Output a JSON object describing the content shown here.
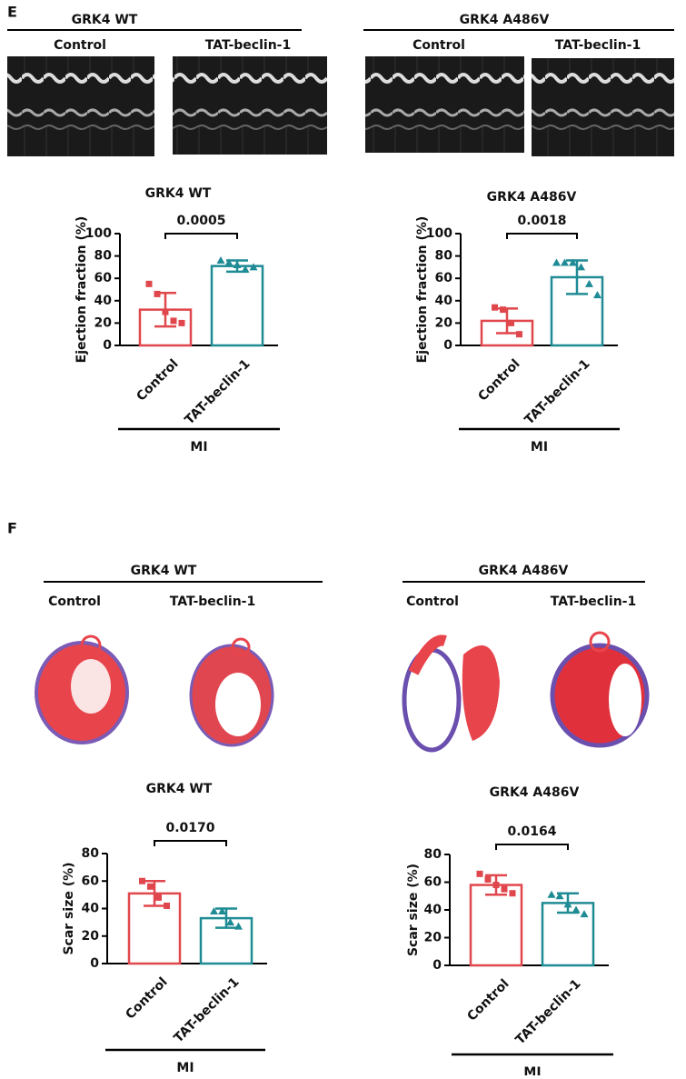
{
  "panels": [
    {
      "label": "E",
      "groups": [
        {
          "title": "GRK4 WT",
          "conditions": [
            "Control",
            "TAT-beclin-1"
          ]
        },
        {
          "title": "GRK4 A486V",
          "conditions": [
            "Control",
            "TAT-beclin-1"
          ]
        }
      ]
    },
    {
      "label": "F",
      "groups": [
        {
          "title": "GRK4 WT",
          "conditions": [
            "Control",
            "TAT-beclin-1"
          ]
        },
        {
          "title": "GRK4 A486V",
          "conditions": [
            "Control",
            "TAT-beclin-1"
          ]
        }
      ]
    }
  ],
  "chart_data": [
    {
      "type": "bar",
      "title": "GRK4 WT",
      "ylabel": "Ejection fraction (%)",
      "categories": [
        "Control",
        "TAT-beclin-1"
      ],
      "values": [
        32,
        71
      ],
      "errors": [
        15,
        5
      ],
      "points": [
        [
          55,
          46,
          30,
          22,
          20
        ],
        [
          76,
          74,
          72,
          68,
          70
        ]
      ],
      "colors": [
        "#e0474c",
        "#1f8b95"
      ],
      "markers": [
        "square",
        "triangle"
      ],
      "annotation": "0.0005",
      "group_label": "MI",
      "ylim": [
        0,
        100
      ],
      "yticks": [
        0,
        20,
        40,
        60,
        80,
        100
      ]
    },
    {
      "type": "bar",
      "title": "GRK4 A486V",
      "ylabel": "Ejection fraction (%)",
      "categories": [
        "Control",
        "TAT-beclin-1"
      ],
      "values": [
        22,
        61
      ],
      "errors": [
        11,
        15
      ],
      "points": [
        [
          34,
          32,
          20,
          10
        ],
        [
          74,
          74,
          74,
          70,
          55,
          45
        ]
      ],
      "colors": [
        "#e0474c",
        "#1f8b95"
      ],
      "markers": [
        "square",
        "triangle"
      ],
      "annotation": "0.0018",
      "group_label": "MI",
      "ylim": [
        0,
        100
      ],
      "yticks": [
        0,
        20,
        40,
        60,
        80,
        100
      ]
    },
    {
      "type": "bar",
      "title": "GRK4 WT",
      "ylabel": "Scar size (%)",
      "categories": [
        "Control",
        "TAT-beclin-1"
      ],
      "values": [
        51,
        33
      ],
      "errors": [
        9,
        7
      ],
      "points": [
        [
          60,
          56,
          48,
          42
        ],
        [
          38,
          38,
          30,
          27
        ]
      ],
      "colors": [
        "#e0474c",
        "#1f8b95"
      ],
      "markers": [
        "square",
        "triangle"
      ],
      "annotation": "0.0170",
      "group_label": "MI",
      "ylim": [
        0,
        80
      ],
      "yticks": [
        0,
        20,
        40,
        60,
        80
      ]
    },
    {
      "type": "bar",
      "title": "GRK4 A486V",
      "ylabel": "Scar size (%)",
      "categories": [
        "Control",
        "TAT-beclin-1"
      ],
      "values": [
        58,
        45
      ],
      "errors": [
        7,
        7
      ],
      "points": [
        [
          66,
          62,
          58,
          55,
          52
        ],
        [
          51,
          50,
          44,
          40,
          37
        ]
      ],
      "colors": [
        "#e0474c",
        "#1f8b95"
      ],
      "markers": [
        "square",
        "triangle"
      ],
      "annotation": "0.0164",
      "group_label": "MI",
      "ylim": [
        0,
        80
      ],
      "yticks": [
        0,
        20,
        40,
        60,
        80
      ]
    }
  ]
}
